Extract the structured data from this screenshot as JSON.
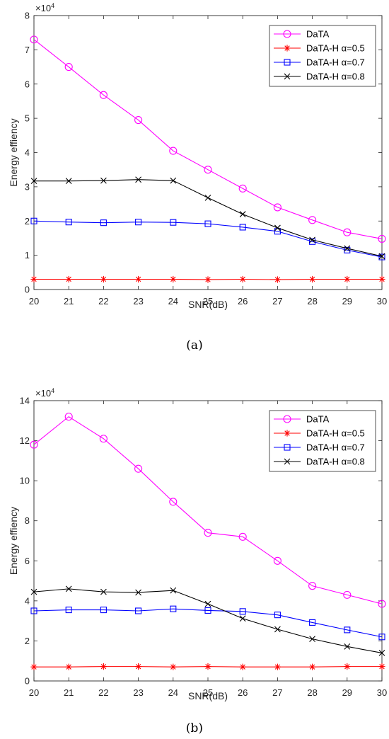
{
  "chart_data": [
    {
      "type": "line",
      "caption": "(a)",
      "xlabel": "SNR(dB)",
      "ylabel": "Energy effiency",
      "y_multiplier_base": "×10",
      "y_multiplier_exp": "4",
      "xlim": [
        20,
        30
      ],
      "ylim": [
        0,
        8
      ],
      "x_ticks": [
        20,
        21,
        22,
        23,
        24,
        25,
        26,
        27,
        28,
        29,
        30
      ],
      "y_ticks": [
        0,
        1,
        2,
        3,
        4,
        5,
        6,
        7,
        8
      ],
      "legend_position": "top-right",
      "grid": false,
      "x": [
        20,
        21,
        22,
        23,
        24,
        25,
        26,
        27,
        28,
        29,
        30
      ],
      "series": [
        {
          "name": "DaTA",
          "color": "#ff00ff",
          "marker": "circle",
          "values": [
            7.3,
            6.5,
            5.68,
            4.95,
            4.05,
            3.5,
            2.95,
            2.4,
            2.03,
            1.67,
            1.48
          ]
        },
        {
          "name": "DaTA-H α=0.5",
          "color": "#ff0000",
          "marker": "star",
          "values": [
            0.3,
            0.3,
            0.3,
            0.3,
            0.3,
            0.29,
            0.3,
            0.29,
            0.3,
            0.3,
            0.3
          ]
        },
        {
          "name": "DaTA-H α=0.7",
          "color": "#0000ff",
          "marker": "square",
          "values": [
            2.0,
            1.97,
            1.95,
            1.97,
            1.96,
            1.92,
            1.82,
            1.7,
            1.4,
            1.15,
            0.95
          ]
        },
        {
          "name": "DaTA-H α=0.8",
          "color": "#000000",
          "marker": "x",
          "values": [
            3.17,
            3.17,
            3.18,
            3.21,
            3.18,
            2.68,
            2.2,
            1.8,
            1.45,
            1.2,
            0.97
          ]
        }
      ]
    },
    {
      "type": "line",
      "caption": "(b)",
      "xlabel": "SNR(dB)",
      "ylabel": "Energy effiency",
      "y_multiplier_base": "×10",
      "y_multiplier_exp": "4",
      "xlim": [
        20,
        30
      ],
      "ylim": [
        0,
        14
      ],
      "x_ticks": [
        20,
        21,
        22,
        23,
        24,
        25,
        26,
        27,
        28,
        29,
        30
      ],
      "y_ticks": [
        0,
        2,
        4,
        6,
        8,
        10,
        12,
        14
      ],
      "legend_position": "top-right",
      "grid": false,
      "x": [
        20,
        21,
        22,
        23,
        24,
        25,
        26,
        27,
        28,
        29,
        30
      ],
      "series": [
        {
          "name": "DaTA",
          "color": "#ff00ff",
          "marker": "circle",
          "values": [
            11.8,
            13.2,
            12.1,
            10.6,
            8.95,
            7.4,
            7.2,
            6.0,
            4.75,
            4.3,
            3.85
          ]
        },
        {
          "name": "DaTA-H α=0.5",
          "color": "#ff0000",
          "marker": "star",
          "values": [
            0.7,
            0.7,
            0.72,
            0.72,
            0.7,
            0.72,
            0.7,
            0.7,
            0.7,
            0.72,
            0.72
          ]
        },
        {
          "name": "DaTA-H α=0.7",
          "color": "#0000ff",
          "marker": "square",
          "values": [
            3.5,
            3.55,
            3.55,
            3.5,
            3.6,
            3.52,
            3.47,
            3.3,
            2.92,
            2.55,
            2.2
          ]
        },
        {
          "name": "DaTA-H α=0.8",
          "color": "#000000",
          "marker": "x",
          "values": [
            4.45,
            4.6,
            4.45,
            4.42,
            4.52,
            3.85,
            3.12,
            2.58,
            2.1,
            1.72,
            1.4
          ]
        }
      ]
    }
  ]
}
